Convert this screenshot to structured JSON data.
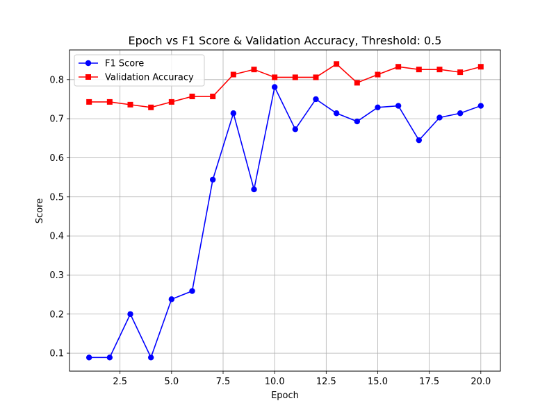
{
  "chart_data": {
    "type": "line",
    "title": "Epoch vs F1 Score & Validation Accuracy, Threshold: 0.5",
    "xlabel": "Epoch",
    "ylabel": "Score",
    "xlim": [
      0.05,
      20.95
    ],
    "ylim": [
      0.054,
      0.876
    ],
    "xticks": [
      2.5,
      5.0,
      7.5,
      10.0,
      12.5,
      15.0,
      17.5,
      20.0
    ],
    "xtick_labels": [
      "2.5",
      "5.0",
      "7.5",
      "10.0",
      "12.5",
      "15.0",
      "17.5",
      "20.0"
    ],
    "yticks": [
      0.1,
      0.2,
      0.3,
      0.4,
      0.5,
      0.6,
      0.7,
      0.8
    ],
    "ytick_labels": [
      "0.1",
      "0.2",
      "0.3",
      "0.4",
      "0.5",
      "0.6",
      "0.7",
      "0.8"
    ],
    "grid": true,
    "legend_position": "top-left",
    "x": [
      1,
      2,
      3,
      4,
      5,
      6,
      7,
      8,
      9,
      10,
      11,
      12,
      13,
      14,
      15,
      16,
      17,
      18,
      19,
      20
    ],
    "series": [
      {
        "name": "F1 Score",
        "color": "#0000ff",
        "marker": "circle",
        "values": [
          0.089,
          0.089,
          0.2,
          0.089,
          0.238,
          0.259,
          0.544,
          0.714,
          0.519,
          0.781,
          0.673,
          0.75,
          0.714,
          0.693,
          0.729,
          0.733,
          0.645,
          0.703,
          0.714,
          0.733
        ]
      },
      {
        "name": "Validation Accuracy",
        "color": "#ff0000",
        "marker": "square",
        "values": [
          0.743,
          0.743,
          0.736,
          0.729,
          0.743,
          0.757,
          0.757,
          0.813,
          0.826,
          0.806,
          0.806,
          0.806,
          0.84,
          0.792,
          0.813,
          0.833,
          0.826,
          0.826,
          0.819,
          0.833
        ]
      }
    ]
  }
}
